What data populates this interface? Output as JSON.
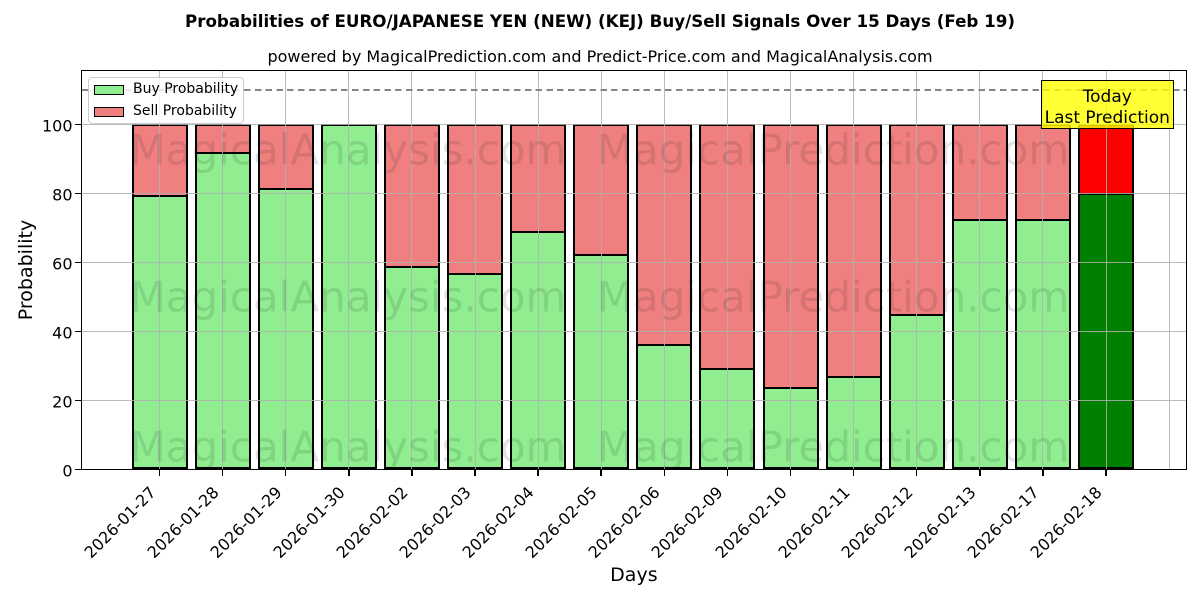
{
  "chart_data": {
    "type": "bar",
    "stacked": true,
    "title": "Probabilities of EURO/JAPANESE YEN (NEW) (KEJ) Buy/Sell Signals Over 15 Days (Feb 19)",
    "subtitle": "powered by MagicalPrediction.com and Predict-Price.com and MagicalAnalysis.com",
    "xlabel": "Days",
    "ylabel": "Probability",
    "categories": [
      "2026-01-27",
      "2026-01-28",
      "2026-01-29",
      "2026-01-30",
      "2026-02-02",
      "2026-02-03",
      "2026-02-04",
      "2026-02-05",
      "2026-02-06",
      "2026-02-09",
      "2026-02-10",
      "2026-02-11",
      "2026-02-12",
      "2026-02-13",
      "2026-02-17",
      "2026-02-18"
    ],
    "series": [
      {
        "name": "Buy Probability",
        "color": "#90ee90",
        "values": [
          79.5,
          92,
          81.5,
          100,
          59,
          57,
          69,
          62.5,
          36.5,
          29.5,
          24,
          27,
          45,
          72.5,
          72.5,
          80
        ]
      },
      {
        "name": "Sell Probability",
        "color": "#f08080",
        "values": [
          20.5,
          8,
          18.5,
          0,
          41,
          43,
          31,
          37.5,
          63.5,
          70.5,
          76,
          73,
          55,
          27.5,
          27.5,
          20
        ]
      }
    ],
    "highlight_last_bar": {
      "buy_color": "#008000",
      "sell_color": "#ff0000"
    },
    "yticks": [
      0,
      20,
      40,
      60,
      80,
      100
    ],
    "ylim": [
      0,
      115.5
    ],
    "grid": true,
    "dashed_line_y": 110,
    "legend_position": "upper left",
    "legend_labels": [
      "Buy Probability",
      "Sell Probability"
    ],
    "annotation_box": {
      "lines": [
        "Today",
        "Last Prediction"
      ],
      "color": "#ffff00"
    },
    "watermarks": [
      "MagicalAnalysis.com",
      "MagicalPrediction.com"
    ],
    "bar_edge_color": "#000000"
  }
}
